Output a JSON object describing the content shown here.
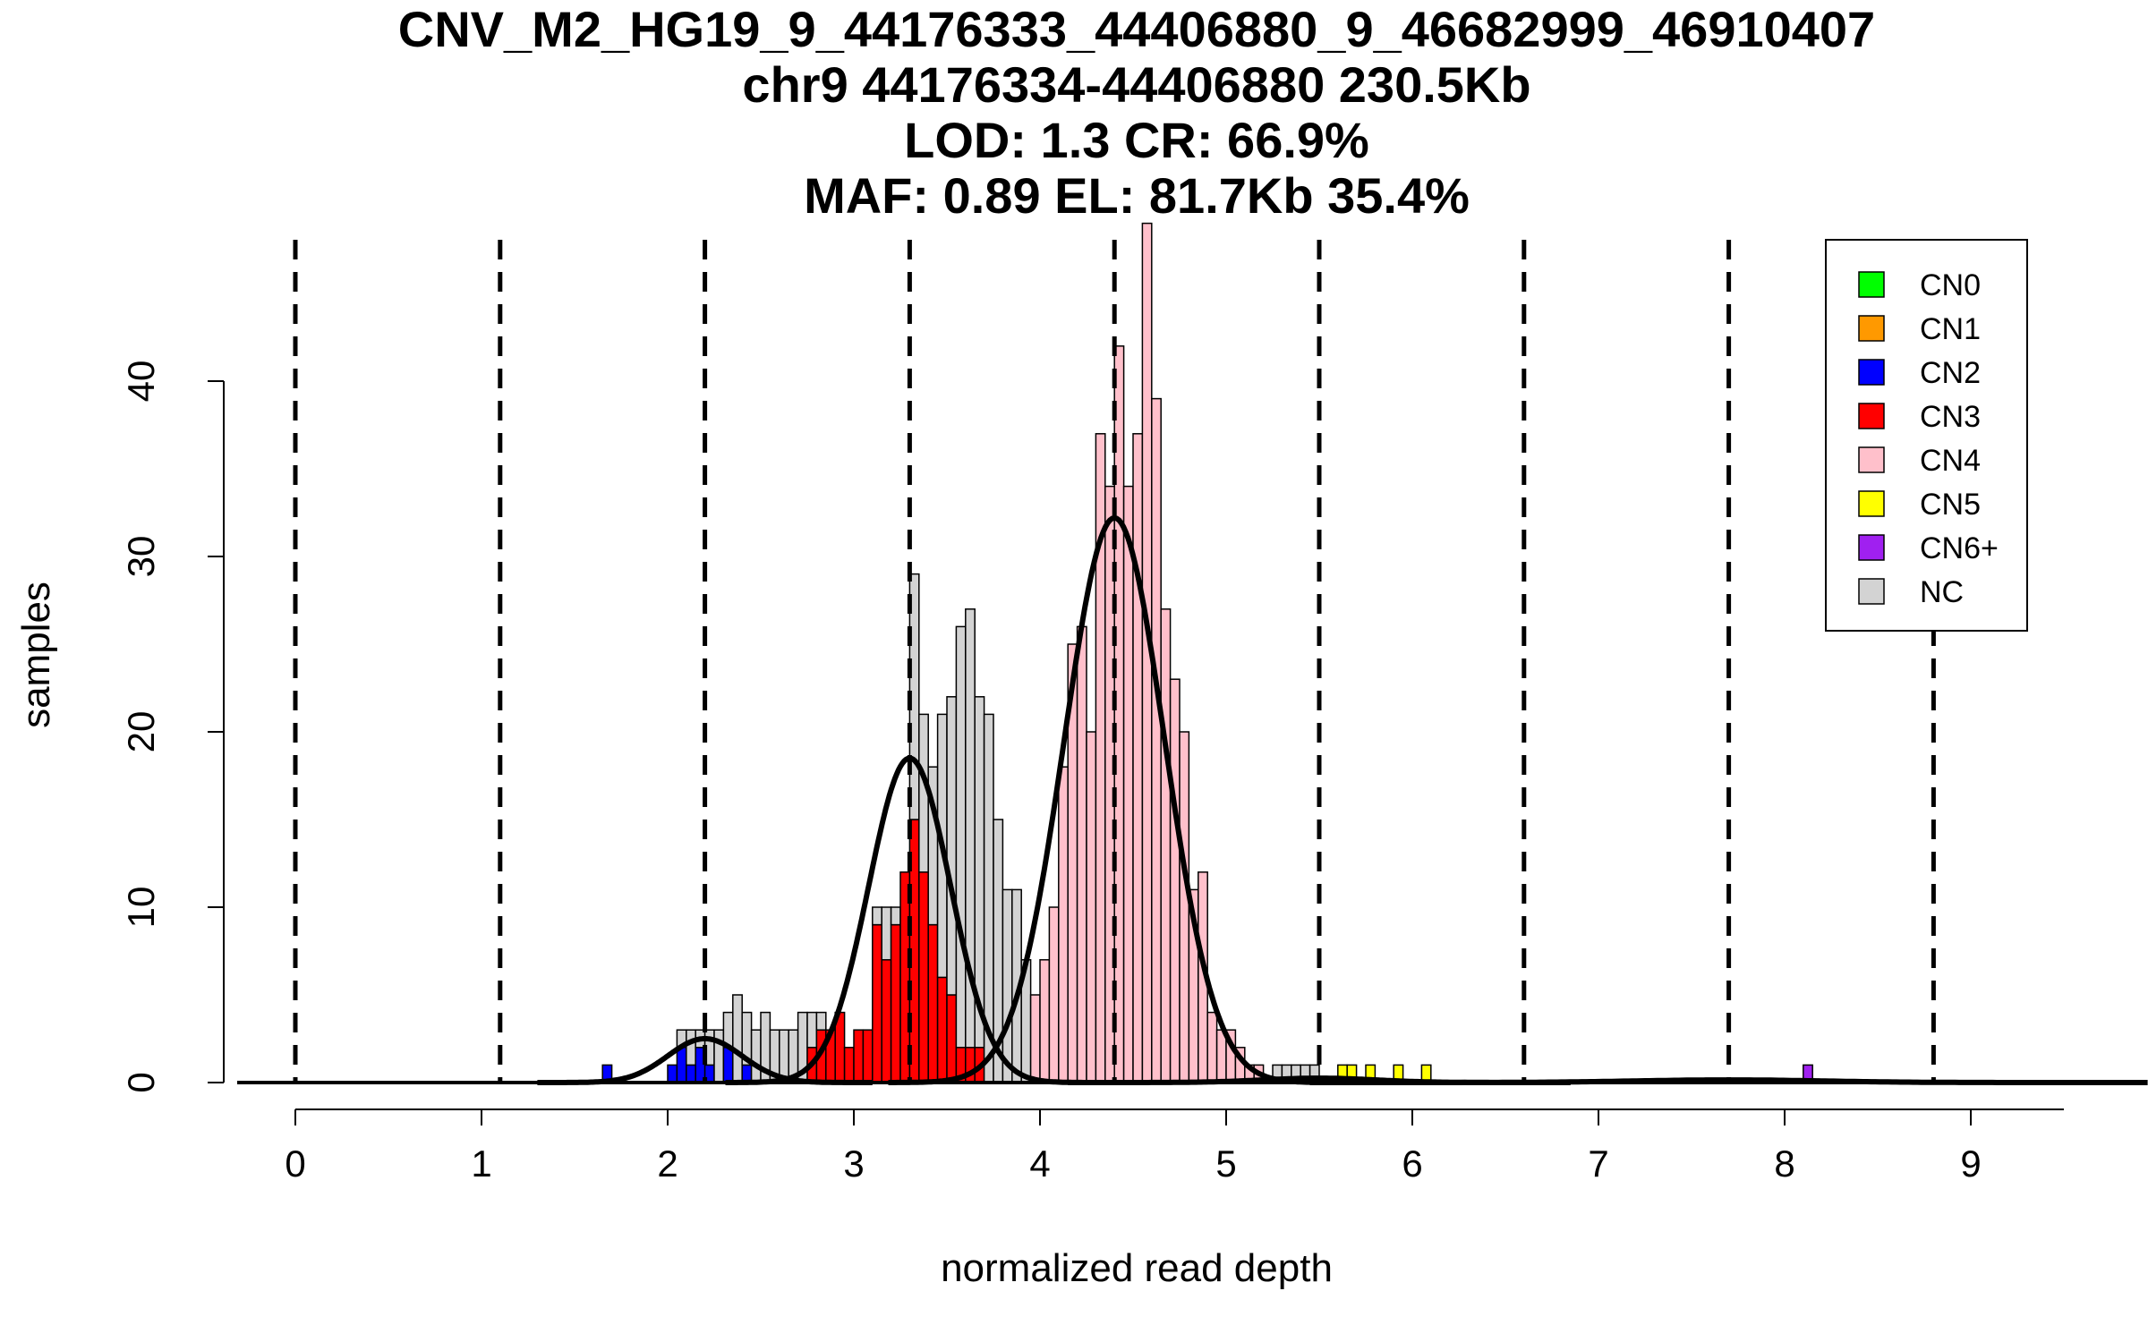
{
  "chart_data": {
    "type": "bar",
    "title_lines": [
      "CNV_M2_HG19_9_44176333_44406880_9_46682999_46910407",
      "chr9 44176334-44406880 230.5Kb",
      "LOD: 1.3 CR: 66.9%",
      "MAF: 0.89 EL: 81.7Kb 35.4%"
    ],
    "xlabel": "normalized read depth",
    "ylabel": "samples",
    "xlim": [
      -0.3,
      9.5
    ],
    "ylim": [
      0,
      48
    ],
    "x_ticks": [
      "0",
      "1",
      "2",
      "3",
      "4",
      "5",
      "6",
      "7",
      "8",
      "9"
    ],
    "y_ticks": [
      "0",
      "10",
      "20",
      "30",
      "40"
    ],
    "bin_width": 0.05,
    "colors": {
      "CN0": "#00ff00",
      "CN1": "#ff9900",
      "CN2": "#0000ff",
      "CN3": "#ff0000",
      "CN4": "#ffc0cb",
      "CN5": "#ffff00",
      "CN6+": "#a020f0",
      "NC": "#d3d3d3"
    },
    "legend": {
      "position": "top-right",
      "items": [
        {
          "label": "CN0",
          "color": "#00ff00"
        },
        {
          "label": "CN1",
          "color": "#ff9900"
        },
        {
          "label": "CN2",
          "color": "#0000ff"
        },
        {
          "label": "CN3",
          "color": "#ff0000"
        },
        {
          "label": "CN4",
          "color": "#ffc0cb"
        },
        {
          "label": "CN5",
          "color": "#ffff00"
        },
        {
          "label": "CN6+",
          "color": "#a020f0"
        },
        {
          "label": "NC",
          "color": "#d3d3d3"
        }
      ]
    },
    "cn_boundaries": [
      0,
      1.1,
      2.2,
      3.3,
      4.4,
      5.5,
      6.6,
      7.7,
      8.8
    ],
    "bars": [
      {
        "x": 1.65,
        "cn": "CN2",
        "value": 1
      },
      {
        "x": 2.0,
        "cn": "CN2",
        "value": 1
      },
      {
        "x": 2.05,
        "cn": "CN2",
        "value": 2,
        "nc": 1
      },
      {
        "x": 2.1,
        "cn": "CN2",
        "value": 1,
        "nc": 2
      },
      {
        "x": 2.15,
        "cn": "CN2",
        "value": 2,
        "nc": 1
      },
      {
        "x": 2.2,
        "cn": "CN2",
        "value": 1,
        "nc": 2
      },
      {
        "x": 2.25,
        "cn": "NC",
        "value": 3
      },
      {
        "x": 2.3,
        "cn": "CN2",
        "value": 2,
        "nc": 2
      },
      {
        "x": 2.35,
        "cn": "NC",
        "value": 5
      },
      {
        "x": 2.4,
        "cn": "CN2",
        "value": 1,
        "nc": 3
      },
      {
        "x": 2.45,
        "cn": "NC",
        "value": 3
      },
      {
        "x": 2.5,
        "cn": "NC",
        "value": 4
      },
      {
        "x": 2.55,
        "cn": "NC",
        "value": 3
      },
      {
        "x": 2.6,
        "cn": "NC",
        "value": 3
      },
      {
        "x": 2.65,
        "cn": "NC",
        "value": 3
      },
      {
        "x": 2.7,
        "cn": "NC",
        "value": 4
      },
      {
        "x": 2.75,
        "cn": "CN3",
        "value": 2,
        "nc": 2
      },
      {
        "x": 2.8,
        "cn": "CN3",
        "value": 3,
        "nc": 1
      },
      {
        "x": 2.85,
        "cn": "CN3",
        "value": 3
      },
      {
        "x": 2.9,
        "cn": "CN3",
        "value": 4
      },
      {
        "x": 2.95,
        "cn": "CN3",
        "value": 2
      },
      {
        "x": 3.0,
        "cn": "CN3",
        "value": 3
      },
      {
        "x": 3.05,
        "cn": "CN3",
        "value": 3
      },
      {
        "x": 3.1,
        "cn": "CN3",
        "value": 9,
        "nc": 1
      },
      {
        "x": 3.15,
        "cn": "CN3",
        "value": 7,
        "nc": 3
      },
      {
        "x": 3.2,
        "cn": "CN3",
        "value": 9,
        "nc": 1
      },
      {
        "x": 3.25,
        "cn": "CN3",
        "value": 12
      },
      {
        "x": 3.3,
        "cn": "CN3",
        "value": 15,
        "nc": 14
      },
      {
        "x": 3.35,
        "cn": "CN3",
        "value": 12,
        "nc": 9
      },
      {
        "x": 3.4,
        "cn": "CN3",
        "value": 9,
        "nc": 9
      },
      {
        "x": 3.45,
        "cn": "CN3",
        "value": 6,
        "nc": 15
      },
      {
        "x": 3.5,
        "cn": "CN3",
        "value": 5,
        "nc": 17
      },
      {
        "x": 3.55,
        "cn": "CN3",
        "value": 2,
        "nc": 24
      },
      {
        "x": 3.6,
        "cn": "CN3",
        "value": 2,
        "nc": 25
      },
      {
        "x": 3.65,
        "cn": "CN3",
        "value": 2,
        "nc": 20
      },
      {
        "x": 3.7,
        "cn": "NC",
        "value": 21
      },
      {
        "x": 3.75,
        "cn": "NC",
        "value": 15
      },
      {
        "x": 3.8,
        "cn": "NC",
        "value": 11
      },
      {
        "x": 3.85,
        "cn": "NC",
        "value": 11
      },
      {
        "x": 3.9,
        "cn": "NC",
        "value": 7
      },
      {
        "x": 3.95,
        "cn": "CN4",
        "value": 5
      },
      {
        "x": 4.0,
        "cn": "CN4",
        "value": 7
      },
      {
        "x": 4.05,
        "cn": "CN4",
        "value": 10
      },
      {
        "x": 4.1,
        "cn": "CN4",
        "value": 18
      },
      {
        "x": 4.15,
        "cn": "CN4",
        "value": 25
      },
      {
        "x": 4.2,
        "cn": "CN4",
        "value": 26
      },
      {
        "x": 4.25,
        "cn": "CN4",
        "value": 20
      },
      {
        "x": 4.3,
        "cn": "CN4",
        "value": 37
      },
      {
        "x": 4.35,
        "cn": "CN4",
        "value": 34
      },
      {
        "x": 4.4,
        "cn": "CN4",
        "value": 42
      },
      {
        "x": 4.45,
        "cn": "CN4",
        "value": 34
      },
      {
        "x": 4.5,
        "cn": "CN4",
        "value": 37
      },
      {
        "x": 4.55,
        "cn": "CN4",
        "value": 49
      },
      {
        "x": 4.6,
        "cn": "CN4",
        "value": 39
      },
      {
        "x": 4.65,
        "cn": "CN4",
        "value": 27
      },
      {
        "x": 4.7,
        "cn": "CN4",
        "value": 23
      },
      {
        "x": 4.75,
        "cn": "CN4",
        "value": 20
      },
      {
        "x": 4.8,
        "cn": "CN4",
        "value": 11
      },
      {
        "x": 4.85,
        "cn": "CN4",
        "value": 12
      },
      {
        "x": 4.9,
        "cn": "CN4",
        "value": 4
      },
      {
        "x": 4.95,
        "cn": "CN4",
        "value": 3
      },
      {
        "x": 5.0,
        "cn": "CN4",
        "value": 3
      },
      {
        "x": 5.05,
        "cn": "CN4",
        "value": 2
      },
      {
        "x": 5.1,
        "cn": "CN4",
        "value": 1
      },
      {
        "x": 5.15,
        "cn": "CN4",
        "value": 1
      },
      {
        "x": 5.25,
        "cn": "NC",
        "value": 1
      },
      {
        "x": 5.3,
        "cn": "NC",
        "value": 1
      },
      {
        "x": 5.35,
        "cn": "NC",
        "value": 1
      },
      {
        "x": 5.4,
        "cn": "NC",
        "value": 1
      },
      {
        "x": 5.45,
        "cn": "NC",
        "value": 1
      },
      {
        "x": 5.6,
        "cn": "CN5",
        "value": 1
      },
      {
        "x": 5.65,
        "cn": "CN5",
        "value": 1
      },
      {
        "x": 5.75,
        "cn": "CN5",
        "value": 1
      },
      {
        "x": 5.9,
        "cn": "CN5",
        "value": 1
      },
      {
        "x": 6.05,
        "cn": "CN5",
        "value": 1
      },
      {
        "x": 8.1,
        "cn": "CN6+",
        "value": 1
      }
    ],
    "gaussians": [
      {
        "label": "CN2",
        "mean": 2.2,
        "sd": 0.2,
        "peak": 2.5
      },
      {
        "label": "CN3",
        "mean": 3.3,
        "sd": 0.22,
        "peak": 18.5
      },
      {
        "label": "CN4",
        "mean": 4.4,
        "sd": 0.27,
        "peak": 32.2
      },
      {
        "label": "CN5",
        "mean": 5.5,
        "sd": 0.3,
        "peak": 0.25
      },
      {
        "label": "CN6+",
        "mean": 7.7,
        "sd": 0.5,
        "peak": 0.15
      }
    ]
  }
}
